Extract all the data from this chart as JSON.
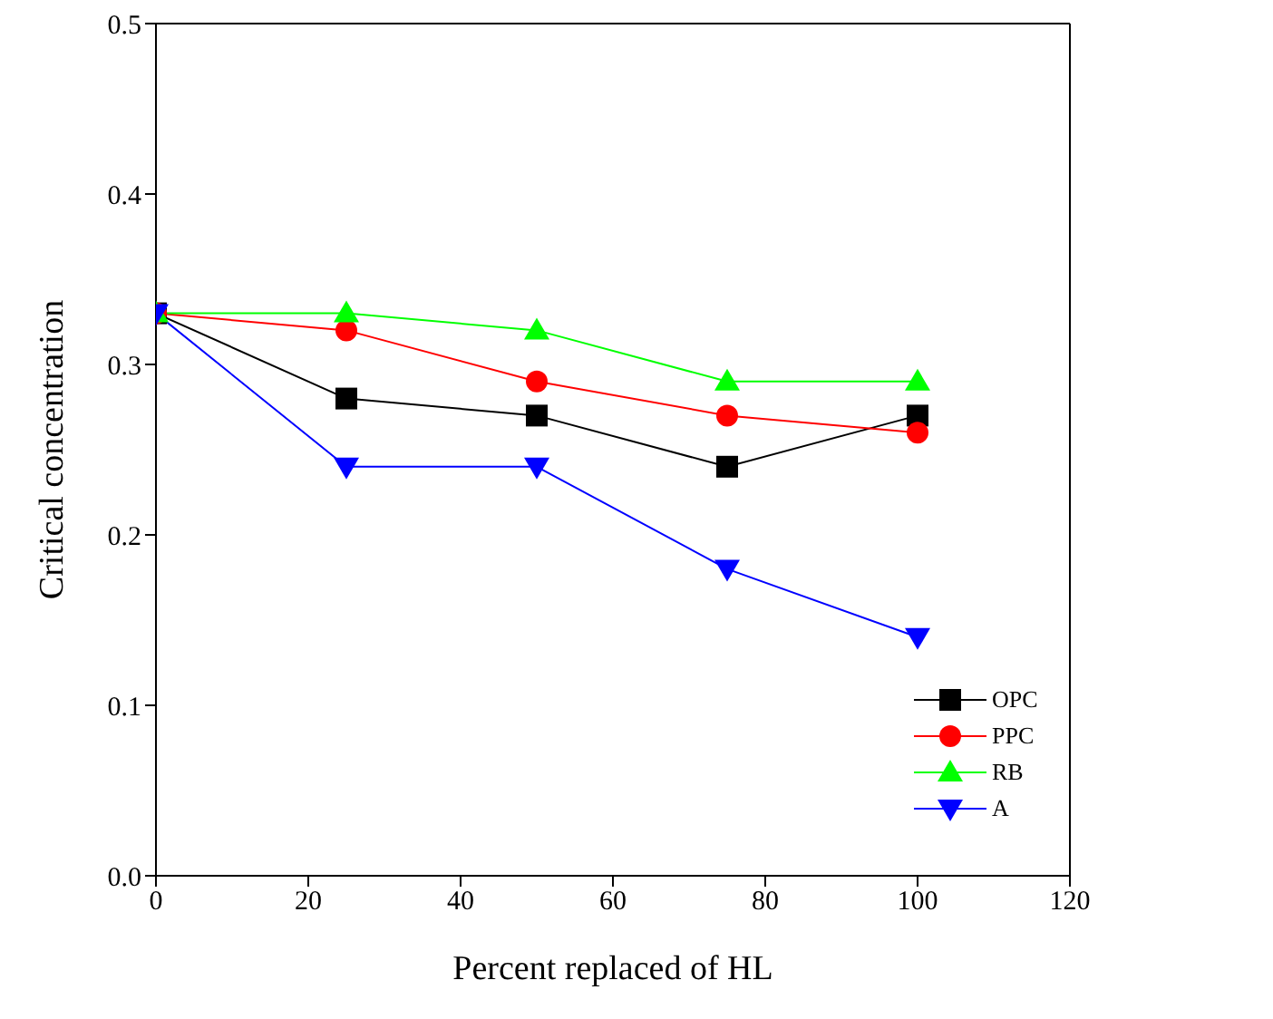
{
  "chart_data": {
    "type": "line",
    "xlabel": "Percent replaced of HL",
    "ylabel": "Critical concentration",
    "x": [
      0,
      25,
      50,
      75,
      100
    ],
    "series": [
      {
        "name": "OPC",
        "color": "#000000",
        "marker": "square",
        "values": [
          0.33,
          0.28,
          0.27,
          0.24,
          0.27
        ]
      },
      {
        "name": "PPC",
        "color": "#ff0000",
        "marker": "circle",
        "values": [
          0.33,
          0.32,
          0.29,
          0.27,
          0.26
        ]
      },
      {
        "name": "RB",
        "color": "#00ff00",
        "marker": "triangle",
        "values": [
          0.33,
          0.33,
          0.32,
          0.29,
          0.29
        ]
      },
      {
        "name": "A",
        "color": "#0000ff",
        "marker": "triangle-down",
        "values": [
          0.33,
          0.24,
          0.24,
          0.18,
          0.14
        ]
      }
    ],
    "xlim": [
      0,
      120
    ],
    "xticks": [
      0,
      20,
      40,
      60,
      80,
      100,
      120
    ],
    "ylim": [
      0,
      0.5
    ],
    "yticks": [
      {
        "value": 0,
        "label": "0.0"
      },
      {
        "value": 0.1,
        "label": "0.1"
      },
      {
        "value": 0.2,
        "label": "0.2"
      },
      {
        "value": 0.3,
        "label": "0.3"
      },
      {
        "value": 0.4,
        "label": "0.4"
      },
      {
        "value": 0.5,
        "label": "0.5"
      }
    ],
    "legend": "bottom right",
    "grid": false,
    "line_style": "solid"
  }
}
